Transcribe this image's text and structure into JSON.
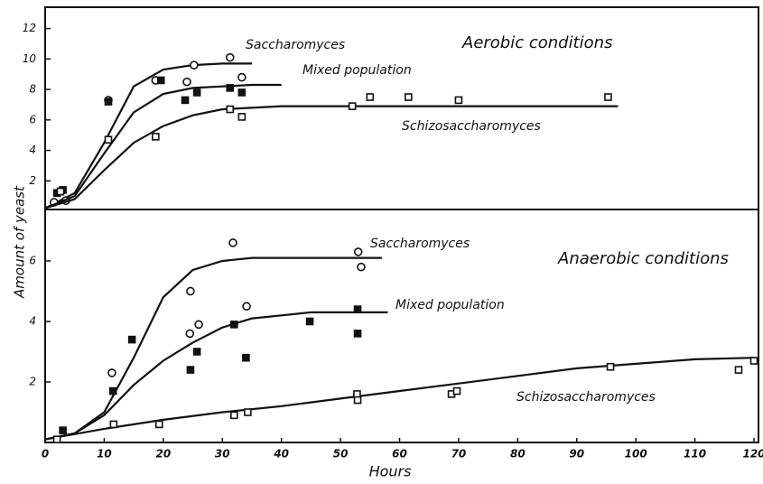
{
  "chart_data": [
    {
      "type": "line",
      "title": "Aerobic conditions",
      "ylabel": "Amount of yeast",
      "xlim": [
        0,
        120
      ],
      "ylim": [
        0,
        13.4
      ],
      "yticks": [
        2,
        4,
        6,
        8,
        10,
        12
      ],
      "series": [
        {
          "name": "Saccharomyces",
          "marker": "circle",
          "x": [
            1.5,
            3.5,
            10.7,
            18.7,
            24,
            25.2,
            31.3,
            33.3
          ],
          "values": [
            0.6,
            0.7,
            7.3,
            8.6,
            8.5,
            9.6,
            10.1,
            8.8
          ],
          "curve_x": [
            0,
            5,
            10,
            15,
            20,
            25,
            30,
            35
          ],
          "curve_values": [
            0.2,
            1.2,
            4.5,
            8.2,
            9.3,
            9.6,
            9.7,
            9.7
          ]
        },
        {
          "name": "Mixed population",
          "marker": "filled-square",
          "x": [
            2,
            3,
            10.7,
            19.6,
            23.7,
            25.7,
            31.3,
            33.3
          ],
          "values": [
            1.2,
            1.4,
            7.2,
            8.6,
            7.3,
            7.8,
            8.1,
            7.8
          ],
          "curve_x": [
            0,
            5,
            10,
            15,
            20,
            25,
            30,
            35,
            40
          ],
          "curve_values": [
            0.2,
            1.0,
            3.8,
            6.5,
            7.7,
            8.1,
            8.2,
            8.3,
            8.3
          ]
        },
        {
          "name": "Schizosaccharomyces",
          "marker": "square",
          "x": [
            2.6,
            10.7,
            18.7,
            31.3,
            33.3,
            52,
            55,
            61.5,
            70,
            95.3
          ],
          "values": [
            1.3,
            4.7,
            4.9,
            6.7,
            6.2,
            6.9,
            7.5,
            7.5,
            7.3,
            7.5
          ],
          "curve_x": [
            0,
            5,
            10,
            15,
            20,
            25,
            30,
            40,
            60,
            80,
            97
          ],
          "curve_values": [
            0.2,
            0.8,
            2.7,
            4.5,
            5.6,
            6.3,
            6.7,
            6.9,
            6.9,
            6.9,
            6.9
          ]
        }
      ]
    },
    {
      "type": "line",
      "title": "Anaerobic conditions",
      "xlabel": "Hours",
      "xlim": [
        0,
        120
      ],
      "xticks": [
        0,
        10,
        20,
        30,
        40,
        50,
        60,
        70,
        80,
        90,
        100,
        110,
        120
      ],
      "ylim": [
        0,
        7.7
      ],
      "yticks": [
        2,
        4,
        6
      ],
      "series": [
        {
          "name": "Saccharomyces",
          "marker": "circle",
          "x": [
            11.3,
            24.6,
            24.5,
            26,
            31.8,
            34.1,
            53,
            53.5
          ],
          "values": [
            2.3,
            5.0,
            3.6,
            3.9,
            6.6,
            4.5,
            6.3,
            5.8
          ],
          "curve_x": [
            0,
            5,
            10,
            15,
            20,
            25,
            30,
            35,
            40,
            57
          ],
          "curve_values": [
            0.1,
            0.3,
            1.0,
            2.8,
            4.8,
            5.7,
            6.0,
            6.1,
            6.1,
            6.1
          ]
        },
        {
          "name": "Mixed population",
          "marker": "filled-square",
          "x": [
            3,
            11.5,
            14.7,
            24.6,
            25.7,
            32,
            34,
            44.8,
            52.9,
            52.9
          ],
          "values": [
            0.4,
            1.7,
            3.4,
            2.4,
            3.0,
            3.9,
            2.8,
            4.0,
            4.4,
            3.6
          ],
          "curve_x": [
            0,
            5,
            10,
            15,
            20,
            25,
            30,
            35,
            40,
            45,
            58
          ],
          "curve_values": [
            0.1,
            0.3,
            0.9,
            1.9,
            2.7,
            3.3,
            3.8,
            4.1,
            4.2,
            4.3,
            4.3
          ]
        },
        {
          "name": "Schizosaccharomyces",
          "marker": "square",
          "x": [
            2,
            11.6,
            19.3,
            32,
            34.3,
            52.8,
            52.9,
            68.8,
            69.7,
            95.7,
            117.4,
            120
          ],
          "values": [
            0.1,
            0.6,
            0.6,
            0.9,
            1.0,
            1.6,
            1.4,
            1.6,
            1.7,
            2.5,
            2.4,
            2.7
          ],
          "curve_x": [
            0,
            10,
            20,
            30,
            40,
            50,
            60,
            70,
            80,
            90,
            100,
            110,
            120
          ],
          "curve_values": [
            0.1,
            0.45,
            0.75,
            1.0,
            1.2,
            1.45,
            1.7,
            1.95,
            2.2,
            2.45,
            2.6,
            2.75,
            2.8
          ]
        }
      ]
    }
  ]
}
